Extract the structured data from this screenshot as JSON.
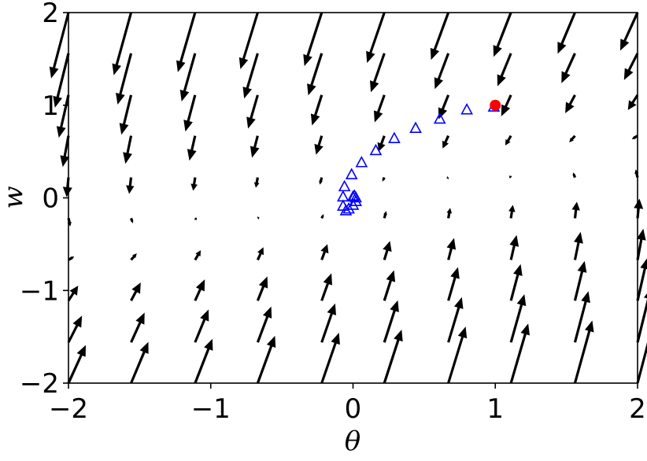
{
  "chart_data": {
    "type": "quiver",
    "xlabel": "θ",
    "ylabel": "w",
    "xlim": [
      -2,
      2
    ],
    "ylim": [
      -2,
      2
    ],
    "xticks": [
      {
        "value": -2,
        "label": "−2"
      },
      {
        "value": -1,
        "label": "−1"
      },
      0,
      1,
      2
    ],
    "yticks": [
      {
        "value": -2,
        "label": "−2"
      },
      {
        "value": -1,
        "label": "−1"
      },
      0,
      1,
      2
    ],
    "arrow_color": "#000000",
    "x": [
      -2,
      -1.56,
      -1.11,
      -0.67,
      -0.22,
      0.22,
      0.67,
      1.11,
      1.56,
      2
    ],
    "y": [
      -2,
      -1.56,
      -1.11,
      -0.67,
      -0.22,
      0.22,
      0.67,
      1.11,
      1.56,
      2
    ],
    "u": [
      [
        1,
        1,
        1,
        1,
        1,
        1,
        1,
        1,
        1,
        1
      ],
      [
        0.78,
        0.78,
        0.78,
        0.78,
        0.78,
        0.78,
        0.78,
        0.78,
        0.78,
        0.78
      ],
      [
        0.56,
        0.56,
        0.56,
        0.56,
        0.56,
        0.56,
        0.56,
        0.56,
        0.56,
        0.56
      ],
      [
        0.33,
        0.33,
        0.33,
        0.33,
        0.33,
        0.33,
        0.33,
        0.33,
        0.33,
        0.33
      ],
      [
        0.11,
        0.11,
        0.11,
        0.11,
        0.11,
        0.11,
        0.11,
        0.11,
        0.11,
        0.11
      ],
      [
        -0.11,
        -0.11,
        -0.11,
        -0.11,
        -0.11,
        -0.11,
        -0.11,
        -0.11,
        -0.11,
        -0.11
      ],
      [
        -0.33,
        -0.33,
        -0.33,
        -0.33,
        -0.33,
        -0.33,
        -0.33,
        -0.33,
        -0.33,
        -0.33
      ],
      [
        -0.56,
        -0.56,
        -0.56,
        -0.56,
        -0.56,
        -0.56,
        -0.56,
        -0.56,
        -0.56,
        -0.56
      ],
      [
        -0.78,
        -0.78,
        -0.78,
        -0.78,
        -0.78,
        -0.78,
        -0.78,
        -0.78,
        -0.78,
        -0.78
      ],
      [
        -1,
        -1,
        -1,
        -1,
        -1,
        -1,
        -1,
        -1,
        -1,
        -1
      ]
    ],
    "v": [
      [
        2.2,
        2.38,
        2.56,
        2.73,
        2.91,
        3.09,
        3.27,
        3.44,
        3.62,
        3.8
      ],
      [
        1.54,
        1.72,
        1.9,
        2.07,
        2.25,
        2.43,
        2.61,
        2.78,
        2.96,
        3.14
      ],
      [
        0.87,
        1.05,
        1.23,
        1.4,
        1.58,
        1.76,
        1.94,
        2.11,
        2.29,
        2.47
      ],
      [
        0.2,
        0.38,
        0.56,
        0.73,
        0.91,
        1.09,
        1.27,
        1.44,
        1.62,
        1.8
      ],
      [
        -0.47,
        -0.29,
        -0.11,
        0.06,
        0.24,
        0.42,
        0.6,
        0.77,
        0.95,
        1.13
      ],
      [
        -1.13,
        -0.95,
        -0.77,
        -0.6,
        -0.42,
        -0.24,
        -0.06,
        0.11,
        0.29,
        0.47
      ],
      [
        -1.8,
        -1.62,
        -1.44,
        -1.27,
        -1.09,
        -0.91,
        -0.73,
        -0.56,
        -0.38,
        -0.2
      ],
      [
        -2.47,
        -2.29,
        -2.11,
        -1.94,
        -1.76,
        -1.58,
        -1.4,
        -1.23,
        -1.05,
        -0.87
      ],
      [
        -3.14,
        -2.96,
        -2.78,
        -2.61,
        -2.43,
        -2.25,
        -2.07,
        -1.9,
        -1.72,
        -1.54
      ],
      [
        -3.8,
        -3.62,
        -3.44,
        -3.27,
        -3.09,
        -2.91,
        -2.73,
        -2.56,
        -2.38,
        -2.2
      ]
    ],
    "series": [
      {
        "marker": "triangle",
        "color": "#0000ff",
        "x": [
          0.99,
          0.8,
          0.61,
          0.44,
          0.29,
          0.16,
          0.06,
          -0.01,
          -0.06,
          -0.07,
          -0.07,
          -0.05,
          -0.03,
          0,
          0.02,
          0.02,
          0.01,
          0
        ],
        "values": [
          0.98,
          0.95,
          0.85,
          0.75,
          0.64,
          0.51,
          0.38,
          0.25,
          0.12,
          0.01,
          -0.09,
          -0.14,
          -0.12,
          -0.08,
          -0.04,
          0,
          0.02,
          0.01
        ]
      },
      {
        "marker": "circle",
        "color": "#ff0000",
        "x": [
          1
        ],
        "values": [
          1
        ]
      }
    ]
  }
}
